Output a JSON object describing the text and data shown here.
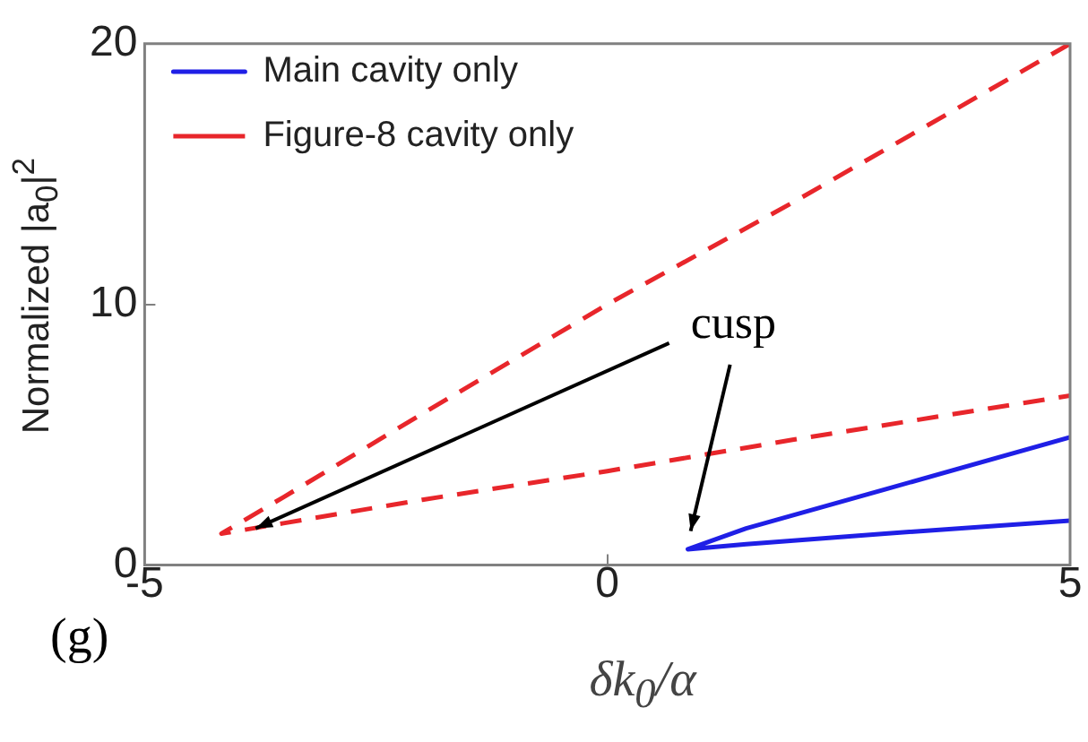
{
  "chart_data": {
    "type": "line",
    "xlabel": "δk$_{0}$/α",
    "ylabel": "Normalized |a$_{0}$|$^{2}$",
    "annotations": [
      "cusp",
      "(g)"
    ],
    "xlim": [
      -5,
      5
    ],
    "xticks": [
      -5,
      0,
      5
    ],
    "ylim": [
      0,
      20
    ],
    "yticks": [
      0,
      10,
      20
    ],
    "grid": false,
    "legend": "top left",
    "marker": "none",
    "series": [
      {
        "name": "Main cavity only",
        "color": "#1f1fe6",
        "line_style": "solid",
        "x": [
          5,
          3,
          1.5,
          0.87,
          1.5,
          3,
          5
        ],
        "values": [
          4.9,
          2.9,
          1.4,
          0.6,
          0.8,
          1.2,
          1.7
        ]
      },
      {
        "name": "Figure-8 cavity only",
        "color": "#e8262b",
        "line_style": "dashed",
        "x": [
          5,
          2,
          0,
          -2,
          -3.5,
          -4.17,
          -3.5,
          -2,
          0,
          2,
          5
        ],
        "values": [
          20,
          13.9,
          10,
          5.8,
          2.6,
          1.2,
          1.6,
          2.5,
          3.6,
          4.8,
          6.5
        ]
      }
    ]
  }
}
